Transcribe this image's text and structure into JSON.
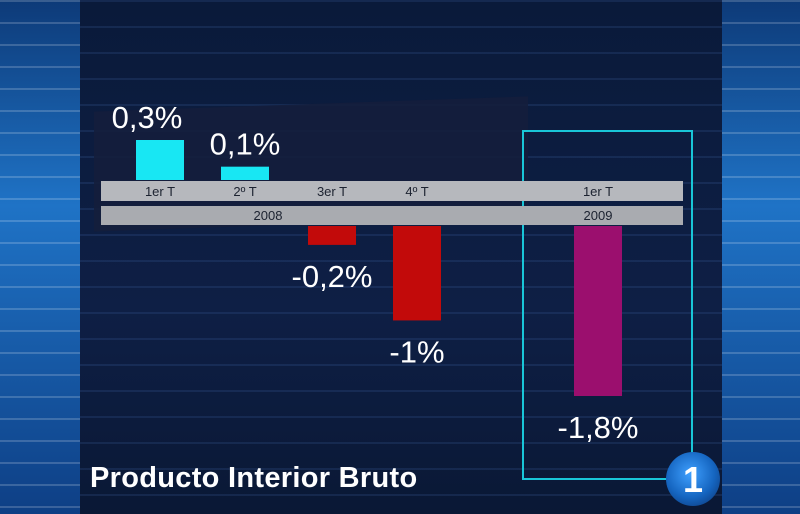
{
  "chart_data": {
    "type": "bar",
    "title": "Producto Interior Bruto",
    "categories": [
      "1er T",
      "2º T",
      "3er T",
      "4º T",
      "1er T"
    ],
    "years": [
      {
        "label": "2008",
        "category_indices": [
          0,
          1,
          2,
          3
        ]
      },
      {
        "label": "2009",
        "category_indices": [
          4
        ]
      }
    ],
    "values": [
      0.3,
      0.1,
      -0.2,
      -1.0,
      -1.8
    ],
    "value_labels": [
      "0,3%",
      "0,1%",
      "-0,2%",
      "-1%",
      "-1,8%"
    ],
    "colors": [
      "#18e7f3",
      "#18e7f3",
      "#c20a0a",
      "#c20a0a",
      "#9b0f6e"
    ],
    "highlight_category_index": 4,
    "ylim": [
      -1.8,
      0.3
    ],
    "grid": false,
    "xlabel": "",
    "ylabel": ""
  },
  "channel_logo": {
    "text": "1"
  }
}
